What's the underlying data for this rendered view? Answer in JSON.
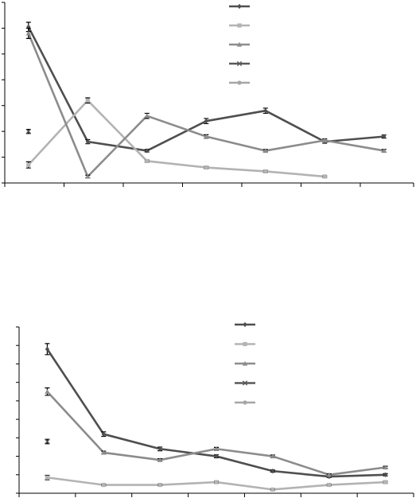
{
  "chart_data": [
    {
      "type": "line",
      "x": [
        1,
        2,
        3,
        4,
        5,
        6,
        7
      ],
      "xlim": [
        0.6,
        7.5
      ],
      "ylim": [
        0,
        7
      ],
      "yticks": [
        0,
        1,
        2,
        3,
        4,
        5,
        6,
        7
      ],
      "xticks": [
        0.6,
        1.6,
        2.6,
        3.6,
        4.6,
        5.6,
        6.6,
        7.5
      ],
      "grid": false,
      "legend_position": "top-center",
      "series": [
        {
          "color": "#4f4f4f",
          "marker": "diamond",
          "values": [
            6.05,
            1.6,
            1.25,
            2.4,
            2.8,
            1.6,
            1.8
          ],
          "errors": [
            0.18,
            0.08,
            0.05,
            0.1,
            0.1,
            0.06,
            0.06
          ]
        },
        {
          "color": "#b3b3b3",
          "marker": "square",
          "values": [
            0.7,
            3.2,
            0.85,
            0.6,
            0.45,
            0.25,
            null
          ],
          "errors": [
            0.12,
            0.1,
            0.04,
            0.04,
            0.04,
            0.03,
            null
          ]
        },
        {
          "color": "#8c8c8c",
          "marker": "triangle",
          "values": [
            5.8,
            0.25,
            2.6,
            1.8,
            1.25,
            1.65,
            1.25
          ],
          "errors": [
            0.2,
            0.05,
            0.1,
            0.07,
            0.05,
            0.06,
            0.05
          ]
        },
        {
          "color": "#595959",
          "marker": "x",
          "values": [
            2.0,
            null,
            null,
            null,
            null,
            null,
            null
          ],
          "errors": [
            0.08,
            null,
            null,
            null,
            null,
            null,
            null
          ]
        },
        {
          "color": "#a6a6a6",
          "marker": "circle",
          "values": [
            null,
            null,
            null,
            null,
            null,
            null,
            null
          ],
          "errors": []
        }
      ]
    },
    {
      "type": "line",
      "x": [
        1,
        2,
        3,
        4,
        5,
        6,
        7
      ],
      "xlim": [
        0.5,
        7.5
      ],
      "ylim": [
        0,
        9
      ],
      "yticks": [
        0,
        1,
        2,
        3,
        4,
        5,
        6,
        7,
        8,
        9
      ],
      "xticks": [
        0.5,
        1.5,
        2.5,
        3.5,
        4.5,
        5.5,
        6.5,
        7.5
      ],
      "grid": false,
      "legend_position": "top-center",
      "series": [
        {
          "color": "#4f4f4f",
          "marker": "diamond",
          "values": [
            7.8,
            3.2,
            2.4,
            2.0,
            1.2,
            0.9,
            1.0
          ],
          "errors": [
            0.3,
            0.12,
            0.1,
            0.08,
            0.06,
            0.05,
            0.06
          ]
        },
        {
          "color": "#b3b3b3",
          "marker": "square",
          "values": [
            0.85,
            0.45,
            0.45,
            0.6,
            0.2,
            0.45,
            0.6
          ],
          "errors": [
            0.12,
            0.04,
            0.04,
            0.05,
            0.03,
            0.04,
            0.05
          ]
        },
        {
          "color": "#8c8c8c",
          "marker": "triangle",
          "values": [
            5.5,
            2.2,
            1.8,
            2.4,
            2.0,
            1.0,
            1.4
          ],
          "errors": [
            0.2,
            0.08,
            0.07,
            0.08,
            0.07,
            0.05,
            0.06
          ]
        },
        {
          "color": "#595959",
          "marker": "x",
          "values": [
            2.8,
            null,
            null,
            null,
            null,
            null,
            null
          ],
          "errors": [
            0.12,
            null,
            null,
            null,
            null,
            null,
            null
          ]
        },
        {
          "color": "#a6a6a6",
          "marker": "circle",
          "values": [
            null,
            null,
            null,
            null,
            null,
            null,
            null
          ],
          "errors": []
        }
      ]
    }
  ]
}
